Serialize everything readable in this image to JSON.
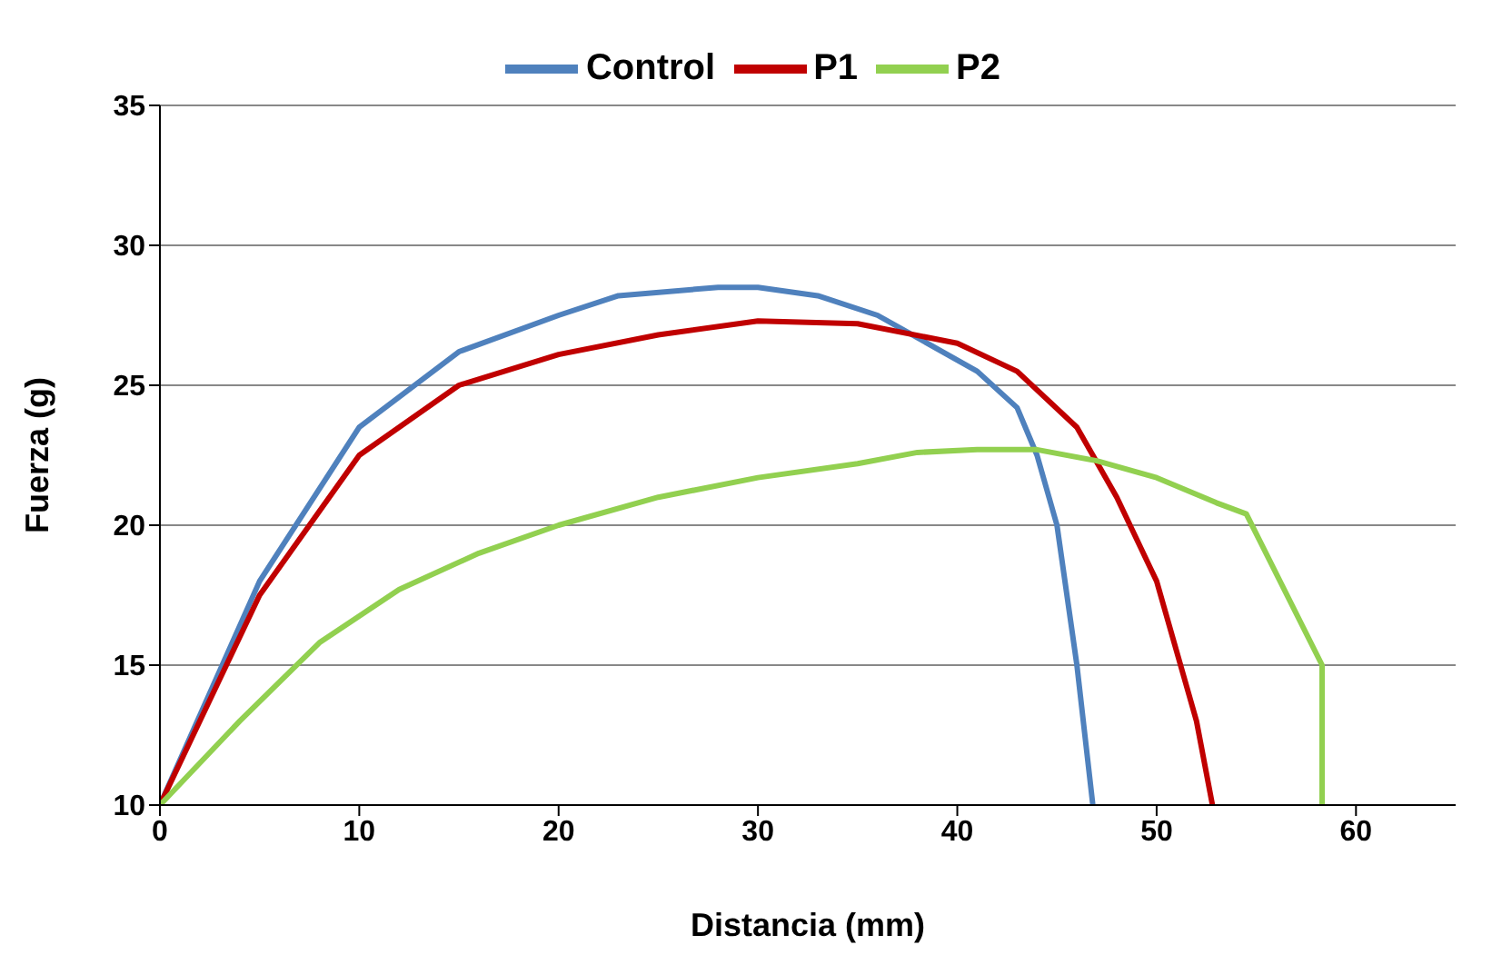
{
  "chart_data": {
    "type": "line",
    "xlabel": "Distancia (mm)",
    "ylabel": "Fuerza (g)",
    "xlim": [
      0,
      65
    ],
    "xticks": [
      0,
      10,
      20,
      30,
      40,
      50,
      60
    ],
    "ylim": [
      10,
      35
    ],
    "yticks": [
      10,
      15,
      20,
      25,
      30,
      35
    ],
    "grid": "y",
    "legend": "top",
    "marker": "none",
    "line_style": "solid",
    "series": [
      {
        "name": "Control",
        "color": "#4f81bd",
        "x": [
          0,
          5,
          10,
          15,
          20,
          23,
          28,
          30,
          33,
          36,
          38,
          41,
          43,
          44,
          45,
          46,
          46.8
        ],
        "values": [
          10,
          18,
          23.5,
          26.2,
          27.5,
          28.2,
          28.5,
          28.5,
          28.2,
          27.5,
          26.7,
          25.5,
          24.2,
          22.5,
          20,
          15,
          10
        ]
      },
      {
        "name": "P1",
        "color": "#c00000",
        "x": [
          0,
          5,
          10,
          15,
          20,
          25,
          30,
          35,
          40,
          43,
          46,
          48,
          50,
          52,
          52.8
        ],
        "values": [
          10,
          17.5,
          22.5,
          25,
          26.1,
          26.8,
          27.3,
          27.2,
          26.5,
          25.5,
          23.5,
          21,
          18,
          13,
          10
        ]
      },
      {
        "name": "P2",
        "color": "#92d050",
        "x": [
          0,
          4,
          8,
          12,
          16,
          20,
          25,
          30,
          35,
          38,
          41,
          44,
          47,
          50,
          53,
          54.5,
          58.3,
          58.3
        ],
        "values": [
          10,
          13,
          15.8,
          17.7,
          19,
          20,
          21,
          21.7,
          22.2,
          22.6,
          22.7,
          22.7,
          22.3,
          21.7,
          20.8,
          20.4,
          15,
          10
        ]
      }
    ]
  }
}
